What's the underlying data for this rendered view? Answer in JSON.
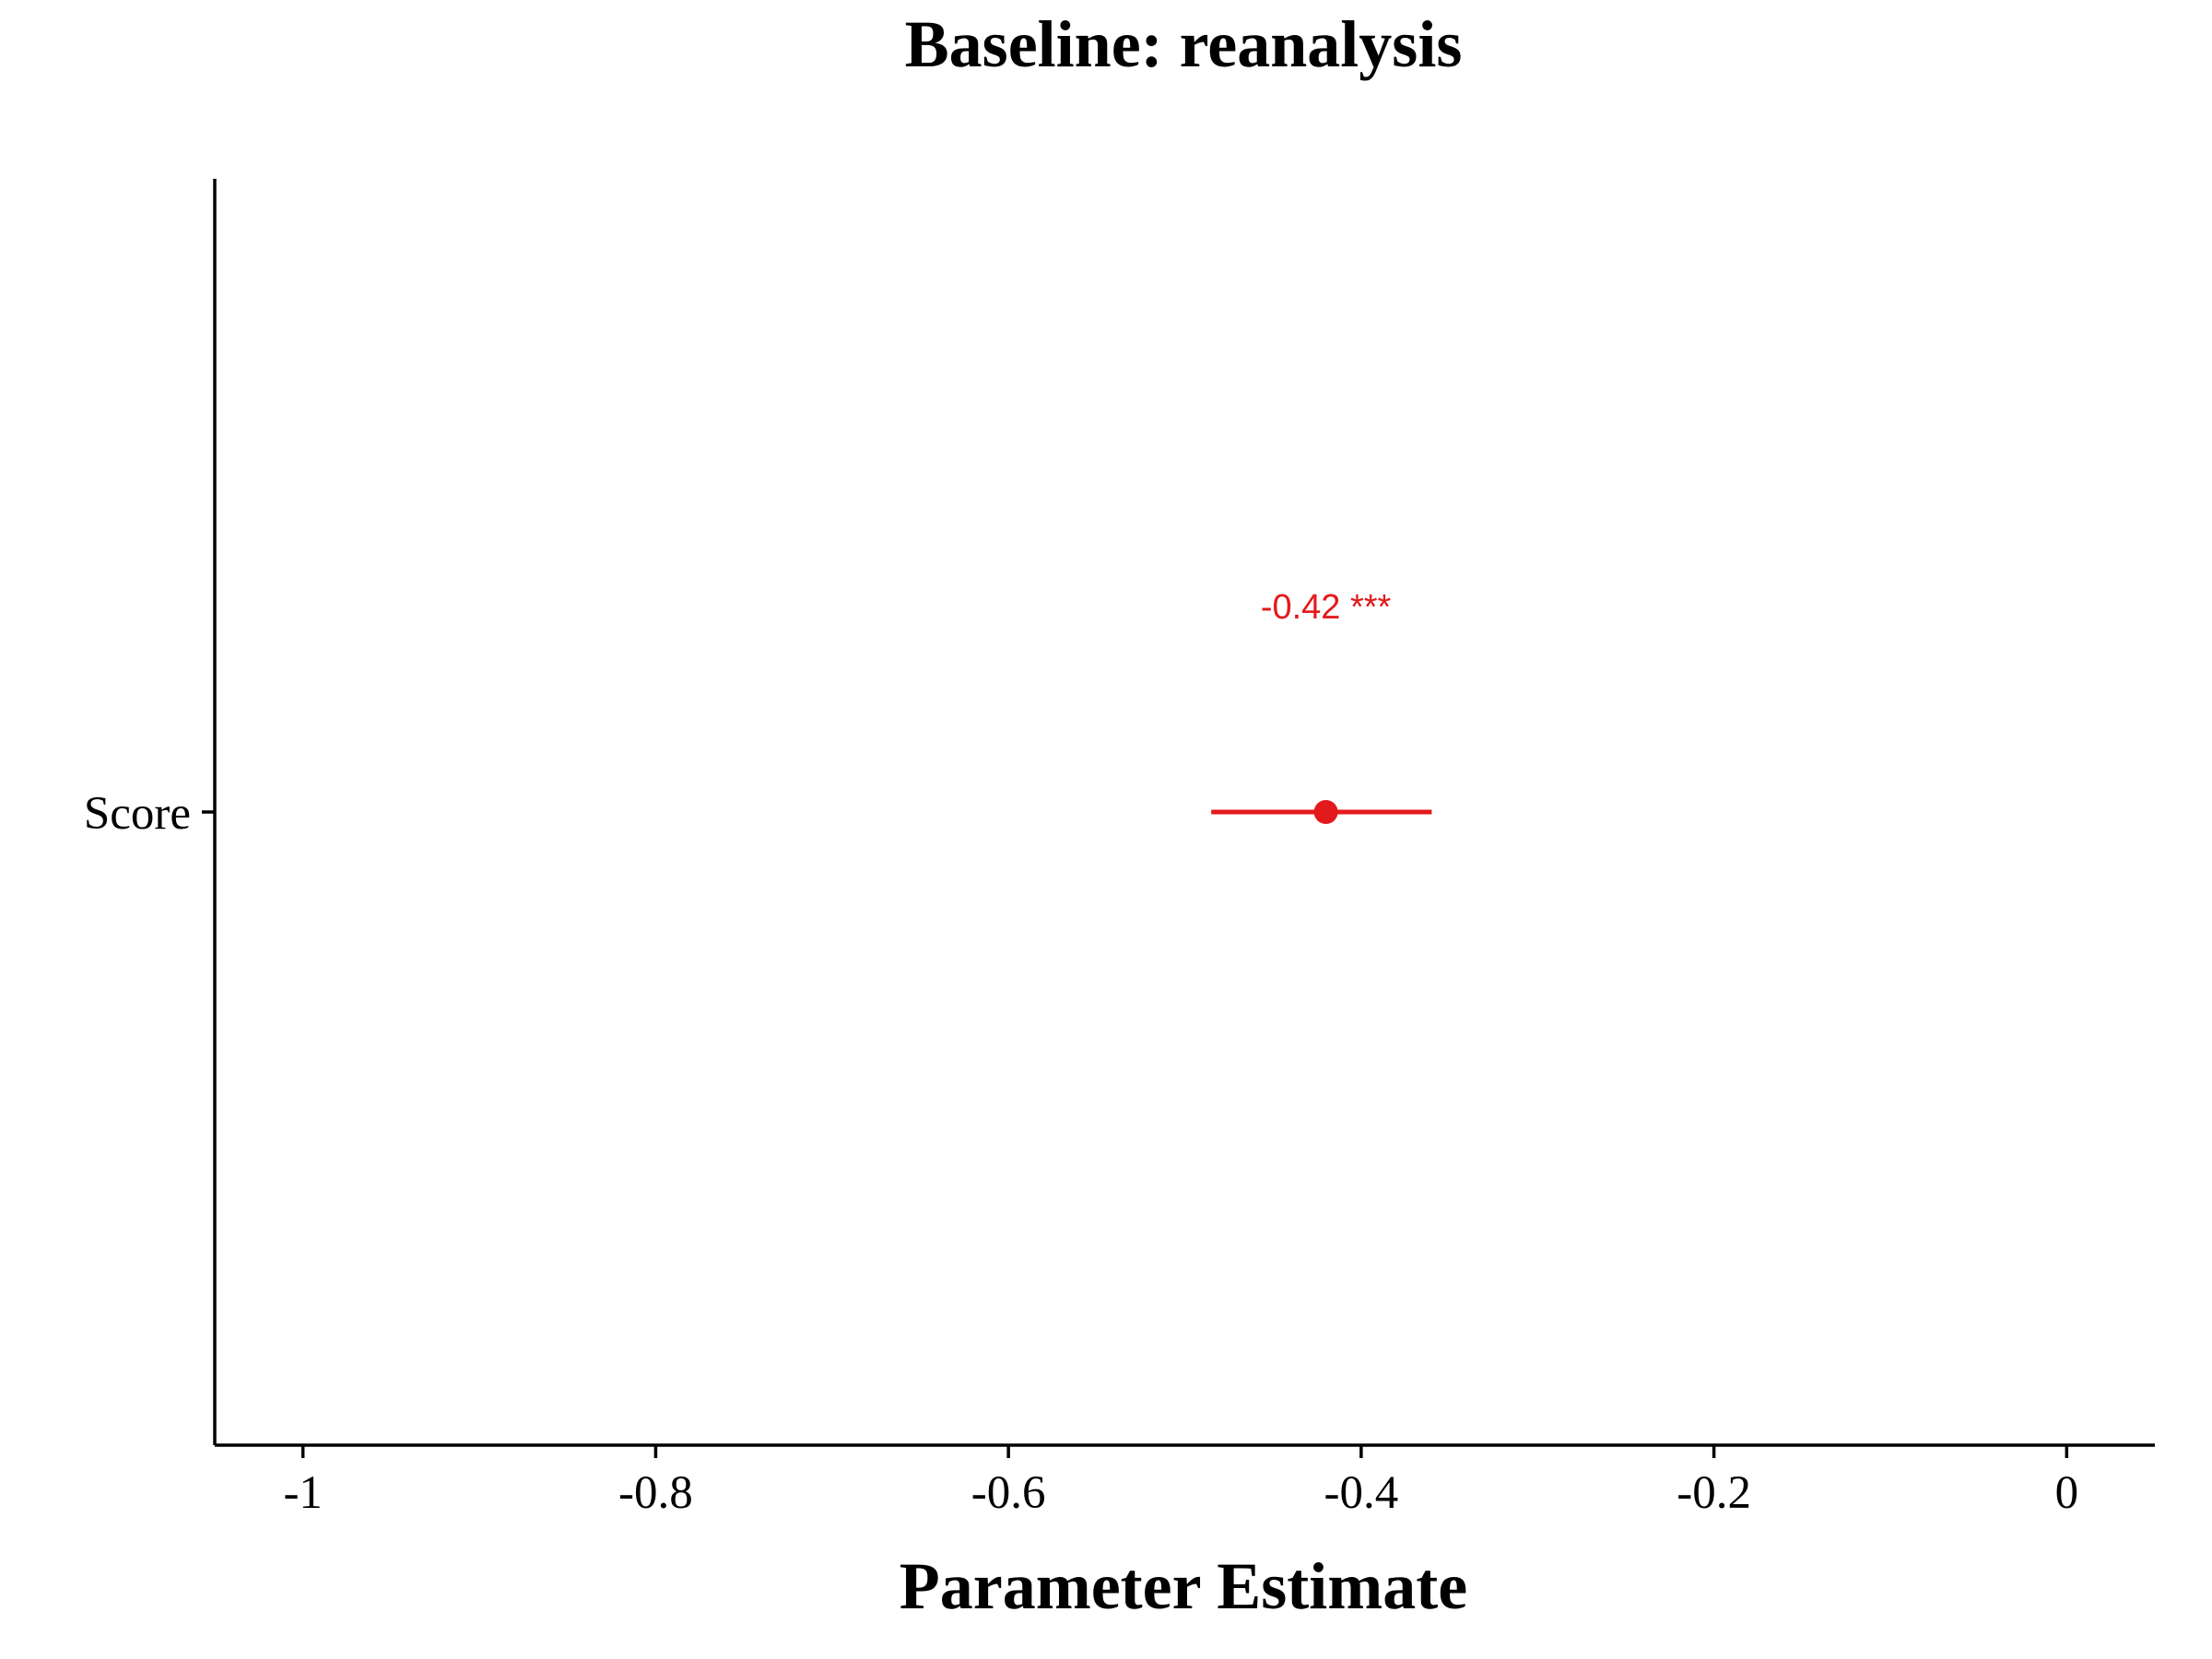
{
  "chart_data": {
    "type": "forest",
    "title": "Baseline: reanalysis",
    "xlabel": "Parameter Estimate",
    "ylabel": "",
    "xlim": [
      -1.05,
      0.05
    ],
    "xticks": [
      -1,
      -0.8,
      -0.6,
      -0.4,
      -0.2,
      0
    ],
    "xtick_labels": [
      "-1",
      "-0.8",
      "-0.6",
      "-0.4",
      "-0.2",
      "0"
    ],
    "categories": [
      "Score"
    ],
    "points": [
      {
        "category": "Score",
        "estimate": -0.42,
        "ci_low": -0.485,
        "ci_high": -0.36,
        "label": "-0.42 ***",
        "color": "#e31a1c"
      }
    ],
    "grid": false,
    "legend": "none"
  }
}
